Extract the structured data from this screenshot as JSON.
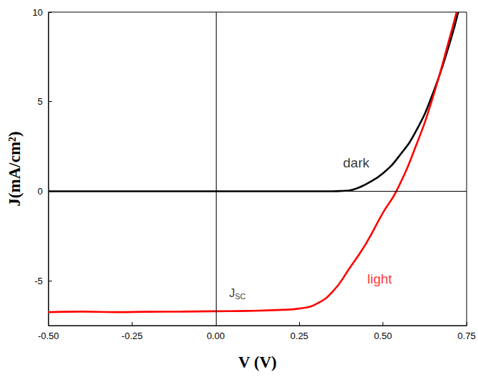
{
  "chart_data": {
    "type": "line",
    "x_label": "V (V)",
    "y_label": "J(mA/cm²)",
    "xlim": [
      -0.5,
      0.75
    ],
    "xticks": [
      {
        "value": -0.5,
        "label": "-0.50"
      },
      {
        "value": -0.25,
        "label": "-0.25"
      },
      {
        "value": 0,
        "label": "0.00"
      },
      {
        "value": 0.25,
        "label": "0.25"
      },
      {
        "value": 0.5,
        "label": "0.50"
      },
      {
        "value": 0.75,
        "label": "0.75"
      }
    ],
    "ylim": [
      -7.5,
      10
    ],
    "yticks": [
      -5,
      0,
      5,
      10
    ],
    "grid": false,
    "series": [
      {
        "name": "dark",
        "color": "#000000",
        "line_style": "solid",
        "x": [
          -0.5,
          -0.25,
          0,
          0.25,
          0.35,
          0.38,
          0.4,
          0.42,
          0.45,
          0.5,
          0.55,
          0.6,
          0.65,
          0.7,
          0.725
        ],
        "values": [
          0,
          0,
          0,
          0,
          0,
          0.02,
          0.05,
          0.15,
          0.4,
          1.0,
          2.0,
          3.4,
          5.5,
          8.3,
          10
        ],
        "label_at": [
          0.42,
          1.6
        ]
      },
      {
        "name": "light",
        "color": "#ff0000",
        "line_style": "solid",
        "x": [
          -0.5,
          -0.4,
          -0.3,
          -0.2,
          -0.1,
          0,
          0.1,
          0.2,
          0.25,
          0.3,
          0.35,
          0.4,
          0.45,
          0.5,
          0.54,
          0.6,
          0.65,
          0.7,
          0.72
        ],
        "values": [
          -6.75,
          -6.72,
          -6.75,
          -6.73,
          -6.72,
          -6.7,
          -6.68,
          -6.62,
          -6.55,
          -6.3,
          -5.6,
          -4.3,
          -2.9,
          -1.2,
          0,
          2.6,
          5.3,
          8.6,
          10
        ],
        "label_at": [
          0.49,
          -4.9
        ]
      }
    ],
    "annotations": [
      {
        "text": "J",
        "subscript": "SC",
        "x": 0.065,
        "y": -5.7,
        "color": "#000000"
      }
    ]
  }
}
